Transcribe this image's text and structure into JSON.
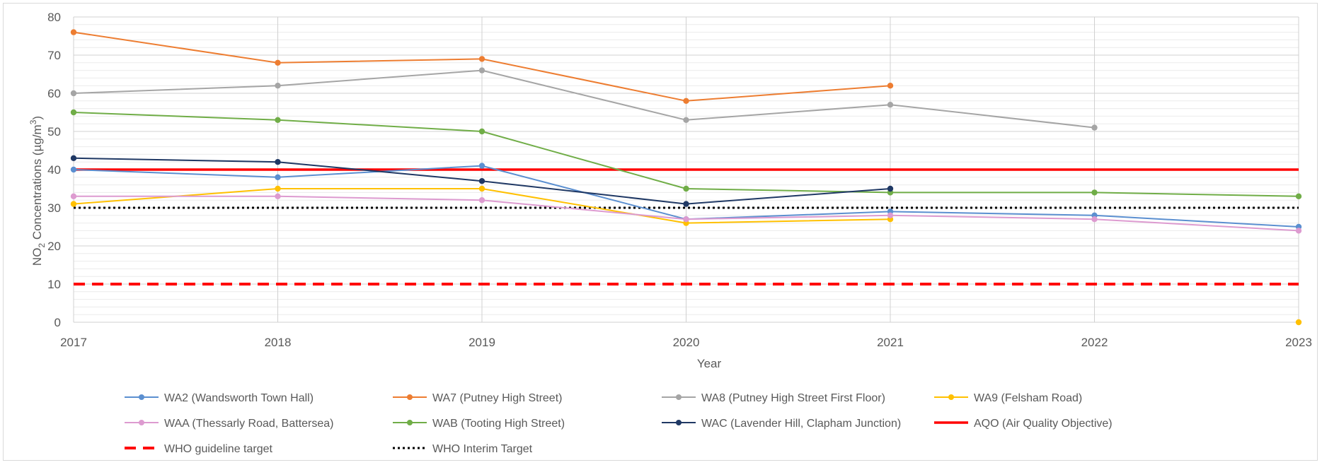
{
  "chart_data": {
    "type": "line",
    "title": "",
    "xlabel": "Year",
    "ylabel_main": "NO",
    "ylabel_sub": "2",
    "ylabel_rest": " Concentrations (µg/m",
    "ylabel_sup": "3",
    "ylabel_end": ")",
    "x": [
      "2017",
      "2018",
      "2019",
      "2020",
      "2021",
      "2022",
      "2023"
    ],
    "ylim": [
      0,
      80
    ],
    "yticks": [
      0,
      10,
      20,
      30,
      40,
      50,
      60,
      70,
      80
    ],
    "grid": "major and minor",
    "legend_position": "bottom",
    "series": [
      {
        "name": "WA2 (Wandsworth Town Hall)",
        "color": "#5b8fd0",
        "style": "solid",
        "marker": true,
        "values": [
          40,
          38,
          41,
          27,
          29,
          28,
          25
        ]
      },
      {
        "name": "WA7 (Putney High Street)",
        "color": "#ed7d31",
        "style": "solid",
        "marker": true,
        "values": [
          76,
          68,
          69,
          58,
          62,
          null,
          null
        ]
      },
      {
        "name": "WA8 (Putney High Street First Floor)",
        "color": "#a5a5a5",
        "style": "solid",
        "marker": true,
        "values": [
          60,
          62,
          66,
          53,
          57,
          51,
          null
        ]
      },
      {
        "name": "WA9 (Felsham Road)",
        "color": "#ffc000",
        "style": "solid",
        "marker": true,
        "values": [
          31,
          35,
          35,
          26,
          27,
          null,
          0
        ]
      },
      {
        "name": "WAA (Thessarly Road, Battersea)",
        "color": "#dd9bd0",
        "style": "solid",
        "marker": true,
        "values": [
          33,
          33,
          32,
          27,
          28,
          27,
          24
        ]
      },
      {
        "name": "WAB (Tooting High Street)",
        "color": "#70ad47",
        "style": "solid",
        "marker": true,
        "values": [
          55,
          53,
          50,
          35,
          34,
          34,
          33
        ]
      },
      {
        "name": "WAC (Lavender Hill, Clapham Junction)",
        "color": "#1f3864",
        "style": "solid",
        "marker": true,
        "values": [
          43,
          42,
          37,
          31,
          35,
          null,
          null
        ]
      },
      {
        "name": "AQO (Air Quality Objective)",
        "color": "#ff0000",
        "style": "solid-thick",
        "marker": false,
        "values": [
          40,
          40,
          40,
          40,
          40,
          40,
          40
        ]
      },
      {
        "name": "WHO guideline target",
        "color": "#ff0000",
        "style": "dashed",
        "marker": false,
        "values": [
          10,
          10,
          10,
          10,
          10,
          10,
          10
        ]
      },
      {
        "name": "WHO Interim Target",
        "color": "#000000",
        "style": "dotted",
        "marker": false,
        "values": [
          30,
          30,
          30,
          30,
          30,
          30,
          30
        ]
      }
    ]
  }
}
